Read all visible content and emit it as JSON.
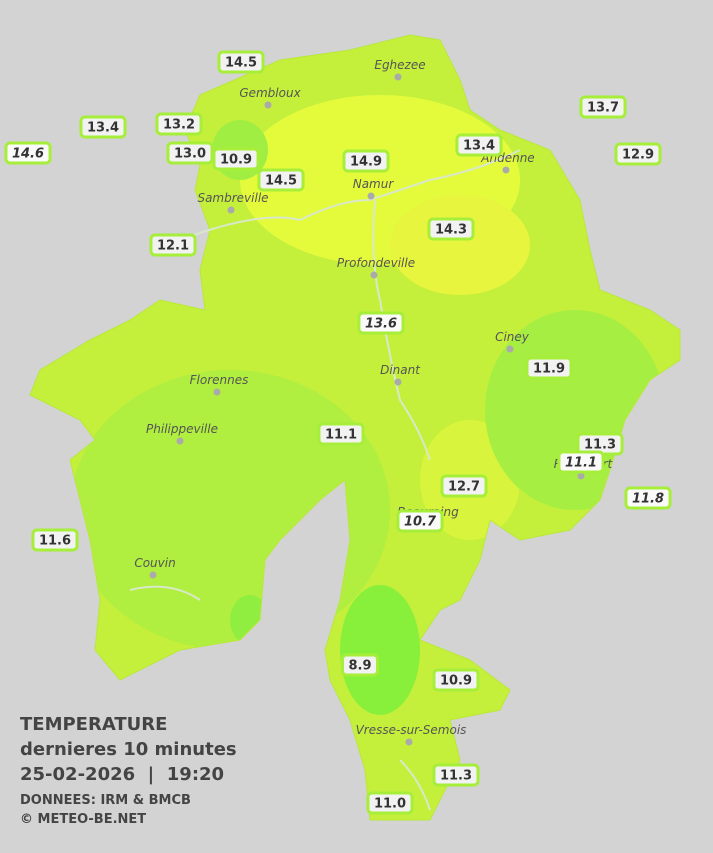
{
  "legend": {
    "title": "TEMPERATURE",
    "subtitle": "dernieres 10 minutes",
    "datetime": "25-02-2026  |  19:20",
    "source": "DONNEES: IRM & BMCB",
    "copyright": "© METEO-BE.NET"
  },
  "cities": [
    "Eghezee",
    "Gembloux",
    "Andenne",
    "Namur",
    "Sambreville",
    "Profondeville",
    "Ciney",
    "Dinant",
    "Florennes",
    "Philippeville",
    "Beauraing",
    "Rochefort",
    "Couvin",
    "Vresse-sur-Semois"
  ],
  "stations": [
    {
      "label": "14.5",
      "italic": false
    },
    {
      "label": "13.4",
      "italic": false
    },
    {
      "label": "13.2",
      "italic": false
    },
    {
      "label": "14.6",
      "italic": true
    },
    {
      "label": "13.0",
      "italic": false
    },
    {
      "label": "10.9",
      "italic": false
    },
    {
      "label": "14.5",
      "italic": false
    },
    {
      "label": "14.9",
      "italic": false
    },
    {
      "label": "13.4",
      "italic": false
    },
    {
      "label": "13.7",
      "italic": false
    },
    {
      "label": "12.9",
      "italic": false
    },
    {
      "label": "14.3",
      "italic": false
    },
    {
      "label": "12.1",
      "italic": false
    },
    {
      "label": "13.6",
      "italic": true
    },
    {
      "label": "11.9",
      "italic": false
    },
    {
      "label": "11.1",
      "italic": false
    },
    {
      "label": "11.3",
      "italic": false
    },
    {
      "label": "11.1",
      "italic": true
    },
    {
      "label": "12.7",
      "italic": false
    },
    {
      "label": "10.7",
      "italic": true
    },
    {
      "label": "11.8",
      "italic": true
    },
    {
      "label": "11.6",
      "italic": false
    },
    {
      "label": "8.9",
      "italic": false
    },
    {
      "label": "10.9",
      "italic": false
    },
    {
      "label": "11.3",
      "italic": false
    },
    {
      "label": "11.0",
      "italic": false
    }
  ]
}
